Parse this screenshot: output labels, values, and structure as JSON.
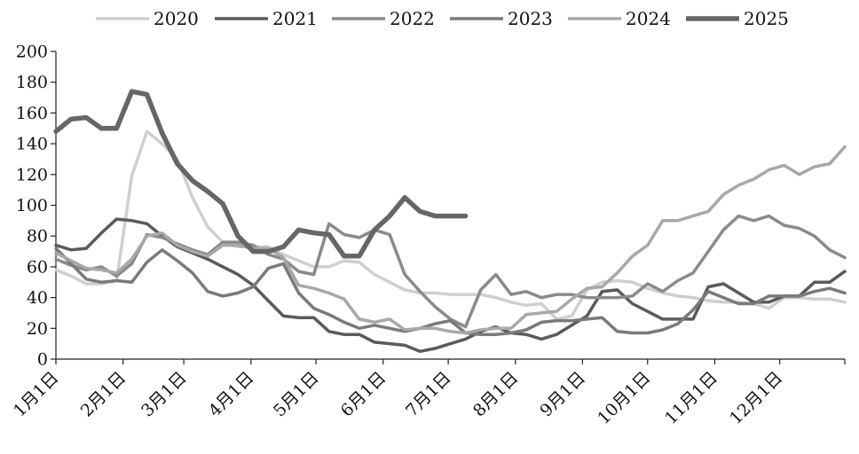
{
  "chart_data": {
    "type": "line",
    "title": "",
    "xlabel": "",
    "ylabel": "",
    "ylim": [
      0,
      200
    ],
    "yticks": [
      0,
      20,
      40,
      60,
      80,
      100,
      120,
      140,
      160,
      180,
      200
    ],
    "x_tick_labels": [
      "1月1日",
      "2月1日",
      "3月1日",
      "4月1日",
      "5月1日",
      "6月1日",
      "7月1日",
      "8月1日",
      "9月1日",
      "10月1日",
      "11月1日",
      "12月1日"
    ],
    "x_unit": "week",
    "x_week_range": [
      1,
      53
    ],
    "grid": false,
    "legend_position": "top",
    "series": [
      {
        "name": "2020",
        "color": "#cfcfcf",
        "width": 3.5,
        "x": [
          1,
          2,
          3,
          4,
          5,
          6,
          7,
          8,
          9,
          10,
          11,
          12,
          13,
          14,
          15,
          16,
          17,
          18,
          19,
          20,
          21,
          22,
          23,
          24,
          25,
          26,
          27,
          28,
          29,
          30,
          31,
          32,
          33,
          34,
          35,
          36,
          37,
          38,
          39,
          40,
          41,
          42,
          43,
          44,
          45,
          46,
          47,
          48,
          49,
          50,
          51,
          52,
          53
        ],
        "values": [
          58,
          54,
          49,
          49,
          51,
          119,
          148,
          140,
          130,
          105,
          86,
          76,
          73,
          73,
          73,
          68,
          64,
          60,
          60,
          64,
          63,
          55,
          50,
          45,
          43,
          43,
          42,
          42,
          42,
          40,
          37,
          35,
          36,
          26,
          28,
          45,
          50,
          51,
          50,
          46,
          43,
          41,
          40,
          38,
          37,
          37,
          36,
          33,
          40,
          40,
          39,
          39,
          37
        ]
      },
      {
        "name": "2021",
        "color": "#5a5a5a",
        "width": 3.5,
        "x": [
          1,
          2,
          3,
          4,
          5,
          6,
          7,
          8,
          9,
          10,
          11,
          12,
          13,
          14,
          15,
          16,
          17,
          18,
          19,
          20,
          21,
          22,
          23,
          24,
          25,
          26,
          27,
          28,
          29,
          30,
          31,
          32,
          33,
          34,
          35,
          36,
          37,
          38,
          39,
          40,
          41,
          42,
          43,
          44,
          45,
          46,
          47,
          48,
          49,
          50,
          51,
          52,
          53
        ],
        "values": [
          74,
          71,
          72,
          82,
          91,
          90,
          88,
          80,
          73,
          69,
          65,
          60,
          55,
          48,
          38,
          28,
          27,
          27,
          18,
          16,
          16,
          11,
          10,
          9,
          5,
          7,
          10,
          13,
          18,
          21,
          17,
          16,
          13,
          16,
          22,
          28,
          44,
          45,
          36,
          31,
          26,
          26,
          26,
          47,
          49,
          43,
          37,
          37,
          41,
          41,
          50,
          50,
          57
        ]
      },
      {
        "name": "2022",
        "color": "#8a8a8a",
        "width": 3.5,
        "x": [
          1,
          2,
          3,
          4,
          5,
          6,
          7,
          8,
          9,
          10,
          11,
          12,
          13,
          14,
          15,
          16,
          17,
          18,
          19,
          20,
          21,
          22,
          23,
          24,
          25,
          26,
          27,
          28,
          29,
          30,
          31,
          32,
          33,
          34,
          35,
          36,
          37,
          38,
          39,
          40,
          41,
          42,
          43,
          44,
          45,
          46,
          47,
          48,
          49,
          50,
          51,
          52,
          53
        ],
        "values": [
          65,
          61,
          58,
          60,
          54,
          62,
          81,
          79,
          75,
          71,
          68,
          76,
          76,
          74,
          68,
          65,
          57,
          55,
          88,
          81,
          79,
          84,
          81,
          55,
          44,
          34,
          26,
          21,
          45,
          55,
          42,
          44,
          40,
          42,
          42,
          40,
          40,
          40,
          41,
          49,
          44,
          51,
          56,
          70,
          84,
          93,
          90,
          93,
          87,
          85,
          80,
          71,
          66
        ]
      },
      {
        "name": "2023",
        "color": "#7a7a7a",
        "width": 3.5,
        "x": [
          1,
          2,
          3,
          4,
          5,
          6,
          7,
          8,
          9,
          10,
          11,
          12,
          13,
          14,
          15,
          16,
          17,
          18,
          19,
          20,
          21,
          22,
          23,
          24,
          25,
          26,
          27,
          28,
          29,
          30,
          31,
          32,
          33,
          34,
          35,
          36,
          37,
          38,
          39,
          40,
          41,
          42,
          43,
          44,
          45,
          46,
          47,
          48,
          49,
          50,
          51,
          52,
          53
        ],
        "values": [
          72,
          62,
          52,
          50,
          51,
          50,
          63,
          71,
          64,
          56,
          44,
          41,
          43,
          47,
          59,
          62,
          43,
          33,
          29,
          24,
          20,
          22,
          20,
          18,
          20,
          23,
          25,
          17,
          16,
          16,
          17,
          19,
          24,
          25,
          25,
          26,
          27,
          18,
          17,
          17,
          19,
          23,
          32,
          44,
          40,
          36,
          36,
          41,
          41,
          41,
          44,
          46,
          43
        ]
      },
      {
        "name": "2024",
        "color": "#a8a8a8",
        "width": 3.5,
        "x": [
          1,
          2,
          3,
          4,
          5,
          6,
          7,
          8,
          9,
          10,
          11,
          12,
          13,
          14,
          15,
          16,
          17,
          18,
          19,
          20,
          21,
          22,
          23,
          24,
          25,
          26,
          27,
          28,
          29,
          30,
          31,
          32,
          33,
          34,
          35,
          36,
          37,
          38,
          39,
          40,
          41,
          42,
          43,
          44,
          45,
          46,
          47,
          48,
          49,
          50,
          51,
          52,
          53
        ],
        "values": [
          69,
          64,
          59,
          58,
          56,
          65,
          80,
          82,
          74,
          70,
          67,
          74,
          74,
          72,
          72,
          66,
          48,
          46,
          43,
          39,
          26,
          24,
          26,
          19,
          20,
          20,
          18,
          17,
          19,
          20,
          20,
          29,
          30,
          31,
          39,
          46,
          47,
          56,
          67,
          74,
          90,
          90,
          93,
          96,
          107,
          113,
          117,
          123,
          126,
          120,
          125,
          127,
          138
        ]
      },
      {
        "name": "2025",
        "color": "#666666",
        "width": 5.5,
        "x": [
          1,
          2,
          3,
          4,
          5,
          6,
          7,
          8,
          9,
          10,
          11,
          12,
          13,
          14,
          15,
          16,
          17,
          18,
          19,
          20,
          21,
          22,
          23,
          24,
          25,
          26,
          27,
          28
        ],
        "values": [
          148,
          156,
          157,
          150,
          150,
          174,
          172,
          147,
          127,
          116,
          109,
          101,
          80,
          70,
          70,
          73,
          84,
          82,
          81,
          67,
          67,
          84,
          93,
          105,
          96,
          93,
          93,
          93
        ]
      }
    ]
  }
}
